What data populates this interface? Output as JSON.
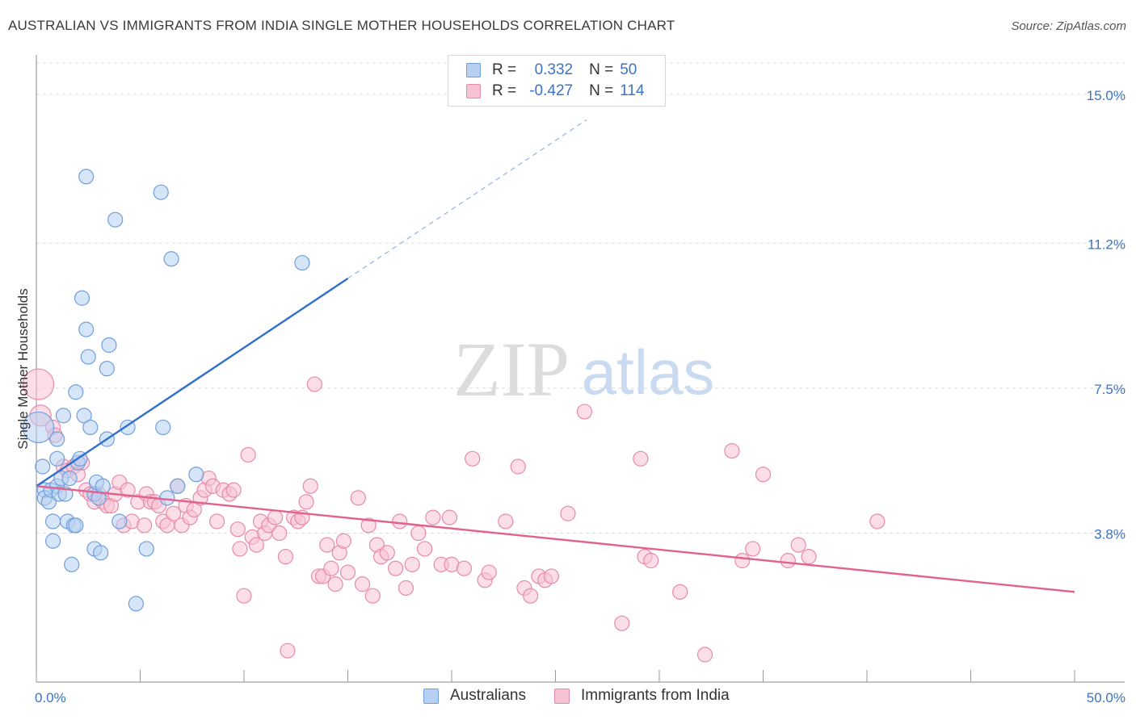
{
  "header": {
    "title": "AUSTRALIAN VS IMMIGRANTS FROM INDIA SINGLE MOTHER HOUSEHOLDS CORRELATION CHART",
    "source": "Source: ZipAtlas.com"
  },
  "watermark": {
    "zip": "ZIP",
    "atlas": "atlas"
  },
  "legend": {
    "rows": [
      {
        "r_label": "R =",
        "r_value": "0.332",
        "n_label": "N =",
        "n_value": "50",
        "color": "#a9c7ef",
        "stroke": "#6f9fdc"
      },
      {
        "r_label": "R =",
        "r_value": "-0.427",
        "n_label": "N =",
        "n_value": "114",
        "color": "#f7b8cc",
        "stroke": "#e88aaa"
      }
    ]
  },
  "bottom_legend": {
    "australians": "Australians",
    "india": "Immigrants from India"
  },
  "colors": {
    "blue": "#6f9fdc",
    "blue_fill": "#b7d0f2",
    "blue_line": "#2f6fcd",
    "pink": "#e88aaa",
    "pink_fill": "#f7c2d3",
    "pink_line": "#e0628e",
    "tick_text": "#3b73c6",
    "grid": "#dcdcdc"
  },
  "chart_data": {
    "type": "scatter",
    "title": "AUSTRALIAN VS IMMIGRANTS FROM INDIA SINGLE MOTHER HOUSEHOLDS CORRELATION CHART",
    "xlabel": "",
    "ylabel": "Single Mother Households",
    "xlim": [
      0,
      50
    ],
    "ylim": [
      0,
      15.8
    ],
    "x_tick_labels": [
      "0.0%",
      "50.0%"
    ],
    "y_ticks": [
      3.8,
      7.5,
      11.2,
      15.0
    ],
    "y_tick_labels": [
      "3.8%",
      "7.5%",
      "11.2%",
      "15.0%"
    ],
    "grid": true,
    "series": [
      {
        "name": "Australians",
        "points": [
          [
            0.1,
            6.5
          ],
          [
            0.3,
            5.5
          ],
          [
            0.4,
            4.9
          ],
          [
            0.4,
            4.7
          ],
          [
            0.6,
            4.6
          ],
          [
            0.7,
            4.9
          ],
          [
            0.8,
            4.1
          ],
          [
            0.8,
            3.6
          ],
          [
            1.0,
            5.0
          ],
          [
            1.0,
            5.7
          ],
          [
            1.0,
            6.2
          ],
          [
            1.1,
            4.8
          ],
          [
            1.2,
            5.2
          ],
          [
            1.3,
            6.8
          ],
          [
            1.4,
            4.8
          ],
          [
            1.5,
            4.1
          ],
          [
            1.6,
            5.2
          ],
          [
            1.7,
            3.0
          ],
          [
            1.8,
            4.0
          ],
          [
            1.9,
            7.4
          ],
          [
            1.9,
            4.0
          ],
          [
            2.0,
            5.6
          ],
          [
            2.1,
            5.7
          ],
          [
            2.2,
            9.8
          ],
          [
            2.3,
            6.8
          ],
          [
            2.4,
            12.9
          ],
          [
            2.4,
            9.0
          ],
          [
            2.5,
            8.3
          ],
          [
            2.6,
            6.5
          ],
          [
            2.8,
            4.8
          ],
          [
            2.8,
            3.4
          ],
          [
            2.9,
            5.1
          ],
          [
            3.0,
            4.7
          ],
          [
            3.1,
            3.3
          ],
          [
            3.2,
            5.0
          ],
          [
            3.4,
            8.0
          ],
          [
            3.4,
            6.2
          ],
          [
            3.5,
            8.6
          ],
          [
            3.8,
            11.8
          ],
          [
            4.0,
            4.1
          ],
          [
            4.4,
            6.5
          ],
          [
            4.8,
            2.0
          ],
          [
            5.3,
            3.4
          ],
          [
            6.0,
            12.5
          ],
          [
            6.1,
            6.5
          ],
          [
            6.3,
            4.7
          ],
          [
            6.5,
            10.8
          ],
          [
            6.8,
            5.0
          ],
          [
            7.7,
            5.3
          ],
          [
            12.8,
            10.7
          ]
        ],
        "regression": {
          "x": [
            0,
            15
          ],
          "y": [
            5.0,
            10.3
          ],
          "dashed_extension": {
            "x": [
              15,
              26.5
            ],
            "y": [
              10.3,
              14.35
            ]
          }
        }
      },
      {
        "name": "Immigrants from India",
        "points": [
          [
            0.1,
            7.6
          ],
          [
            0.2,
            6.8
          ],
          [
            0.8,
            6.5
          ],
          [
            0.9,
            6.3
          ],
          [
            1.3,
            5.5
          ],
          [
            1.5,
            5.4
          ],
          [
            1.8,
            5.5
          ],
          [
            2.0,
            5.3
          ],
          [
            2.2,
            5.6
          ],
          [
            2.4,
            4.9
          ],
          [
            2.6,
            4.8
          ],
          [
            2.8,
            4.6
          ],
          [
            3.0,
            4.8
          ],
          [
            3.2,
            4.6
          ],
          [
            3.4,
            4.5
          ],
          [
            3.6,
            4.5
          ],
          [
            3.8,
            4.8
          ],
          [
            4.0,
            5.1
          ],
          [
            4.2,
            4.0
          ],
          [
            4.4,
            4.9
          ],
          [
            4.6,
            4.1
          ],
          [
            4.9,
            4.6
          ],
          [
            5.2,
            4.0
          ],
          [
            5.3,
            4.8
          ],
          [
            5.5,
            4.6
          ],
          [
            5.7,
            4.6
          ],
          [
            5.9,
            4.5
          ],
          [
            6.1,
            4.1
          ],
          [
            6.3,
            4.0
          ],
          [
            6.6,
            4.3
          ],
          [
            6.8,
            5.0
          ],
          [
            7.0,
            4.0
          ],
          [
            7.2,
            4.5
          ],
          [
            7.4,
            4.2
          ],
          [
            7.6,
            4.4
          ],
          [
            7.9,
            4.7
          ],
          [
            8.1,
            4.9
          ],
          [
            8.3,
            5.2
          ],
          [
            8.5,
            5.0
          ],
          [
            8.7,
            4.1
          ],
          [
            9.0,
            4.9
          ],
          [
            9.3,
            4.8
          ],
          [
            9.5,
            4.9
          ],
          [
            9.7,
            3.9
          ],
          [
            9.8,
            3.4
          ],
          [
            10.0,
            2.2
          ],
          [
            10.2,
            5.8
          ],
          [
            10.4,
            3.7
          ],
          [
            10.6,
            3.5
          ],
          [
            10.8,
            4.1
          ],
          [
            11.0,
            3.8
          ],
          [
            11.2,
            4.0
          ],
          [
            11.5,
            4.2
          ],
          [
            11.7,
            3.8
          ],
          [
            12.0,
            3.2
          ],
          [
            12.1,
            0.8
          ],
          [
            12.4,
            4.2
          ],
          [
            12.6,
            4.1
          ],
          [
            12.8,
            4.2
          ],
          [
            13.0,
            4.6
          ],
          [
            13.2,
            5.0
          ],
          [
            13.4,
            7.6
          ],
          [
            13.6,
            2.7
          ],
          [
            13.8,
            2.7
          ],
          [
            14.0,
            3.5
          ],
          [
            14.2,
            2.9
          ],
          [
            14.4,
            2.5
          ],
          [
            14.6,
            3.3
          ],
          [
            14.8,
            3.6
          ],
          [
            15.0,
            2.8
          ],
          [
            15.5,
            4.7
          ],
          [
            15.7,
            2.5
          ],
          [
            16.0,
            4.0
          ],
          [
            16.2,
            2.2
          ],
          [
            16.4,
            3.5
          ],
          [
            16.6,
            3.2
          ],
          [
            16.9,
            3.3
          ],
          [
            17.3,
            2.9
          ],
          [
            17.5,
            4.1
          ],
          [
            17.8,
            2.4
          ],
          [
            18.1,
            3.0
          ],
          [
            18.4,
            3.8
          ],
          [
            18.7,
            3.4
          ],
          [
            19.1,
            4.2
          ],
          [
            19.5,
            3.0
          ],
          [
            19.9,
            4.2
          ],
          [
            20.0,
            3.0
          ],
          [
            20.6,
            2.9
          ],
          [
            21.0,
            5.7
          ],
          [
            21.6,
            2.6
          ],
          [
            21.8,
            2.8
          ],
          [
            22.6,
            4.1
          ],
          [
            23.2,
            5.5
          ],
          [
            23.5,
            2.4
          ],
          [
            23.8,
            2.2
          ],
          [
            24.2,
            2.7
          ],
          [
            24.5,
            2.6
          ],
          [
            24.8,
            2.7
          ],
          [
            25.6,
            4.3
          ],
          [
            26.4,
            6.9
          ],
          [
            28.2,
            1.5
          ],
          [
            29.1,
            5.7
          ],
          [
            29.3,
            3.2
          ],
          [
            29.6,
            3.1
          ],
          [
            31.0,
            2.3
          ],
          [
            32.2,
            0.7
          ],
          [
            33.5,
            5.9
          ],
          [
            34.0,
            3.1
          ],
          [
            34.5,
            3.4
          ],
          [
            35.0,
            5.3
          ],
          [
            36.2,
            3.1
          ],
          [
            36.7,
            3.5
          ],
          [
            37.2,
            3.2
          ],
          [
            40.5,
            4.1
          ]
        ],
        "regression": {
          "x": [
            0,
            50
          ],
          "y": [
            5.0,
            2.3
          ]
        }
      }
    ]
  }
}
